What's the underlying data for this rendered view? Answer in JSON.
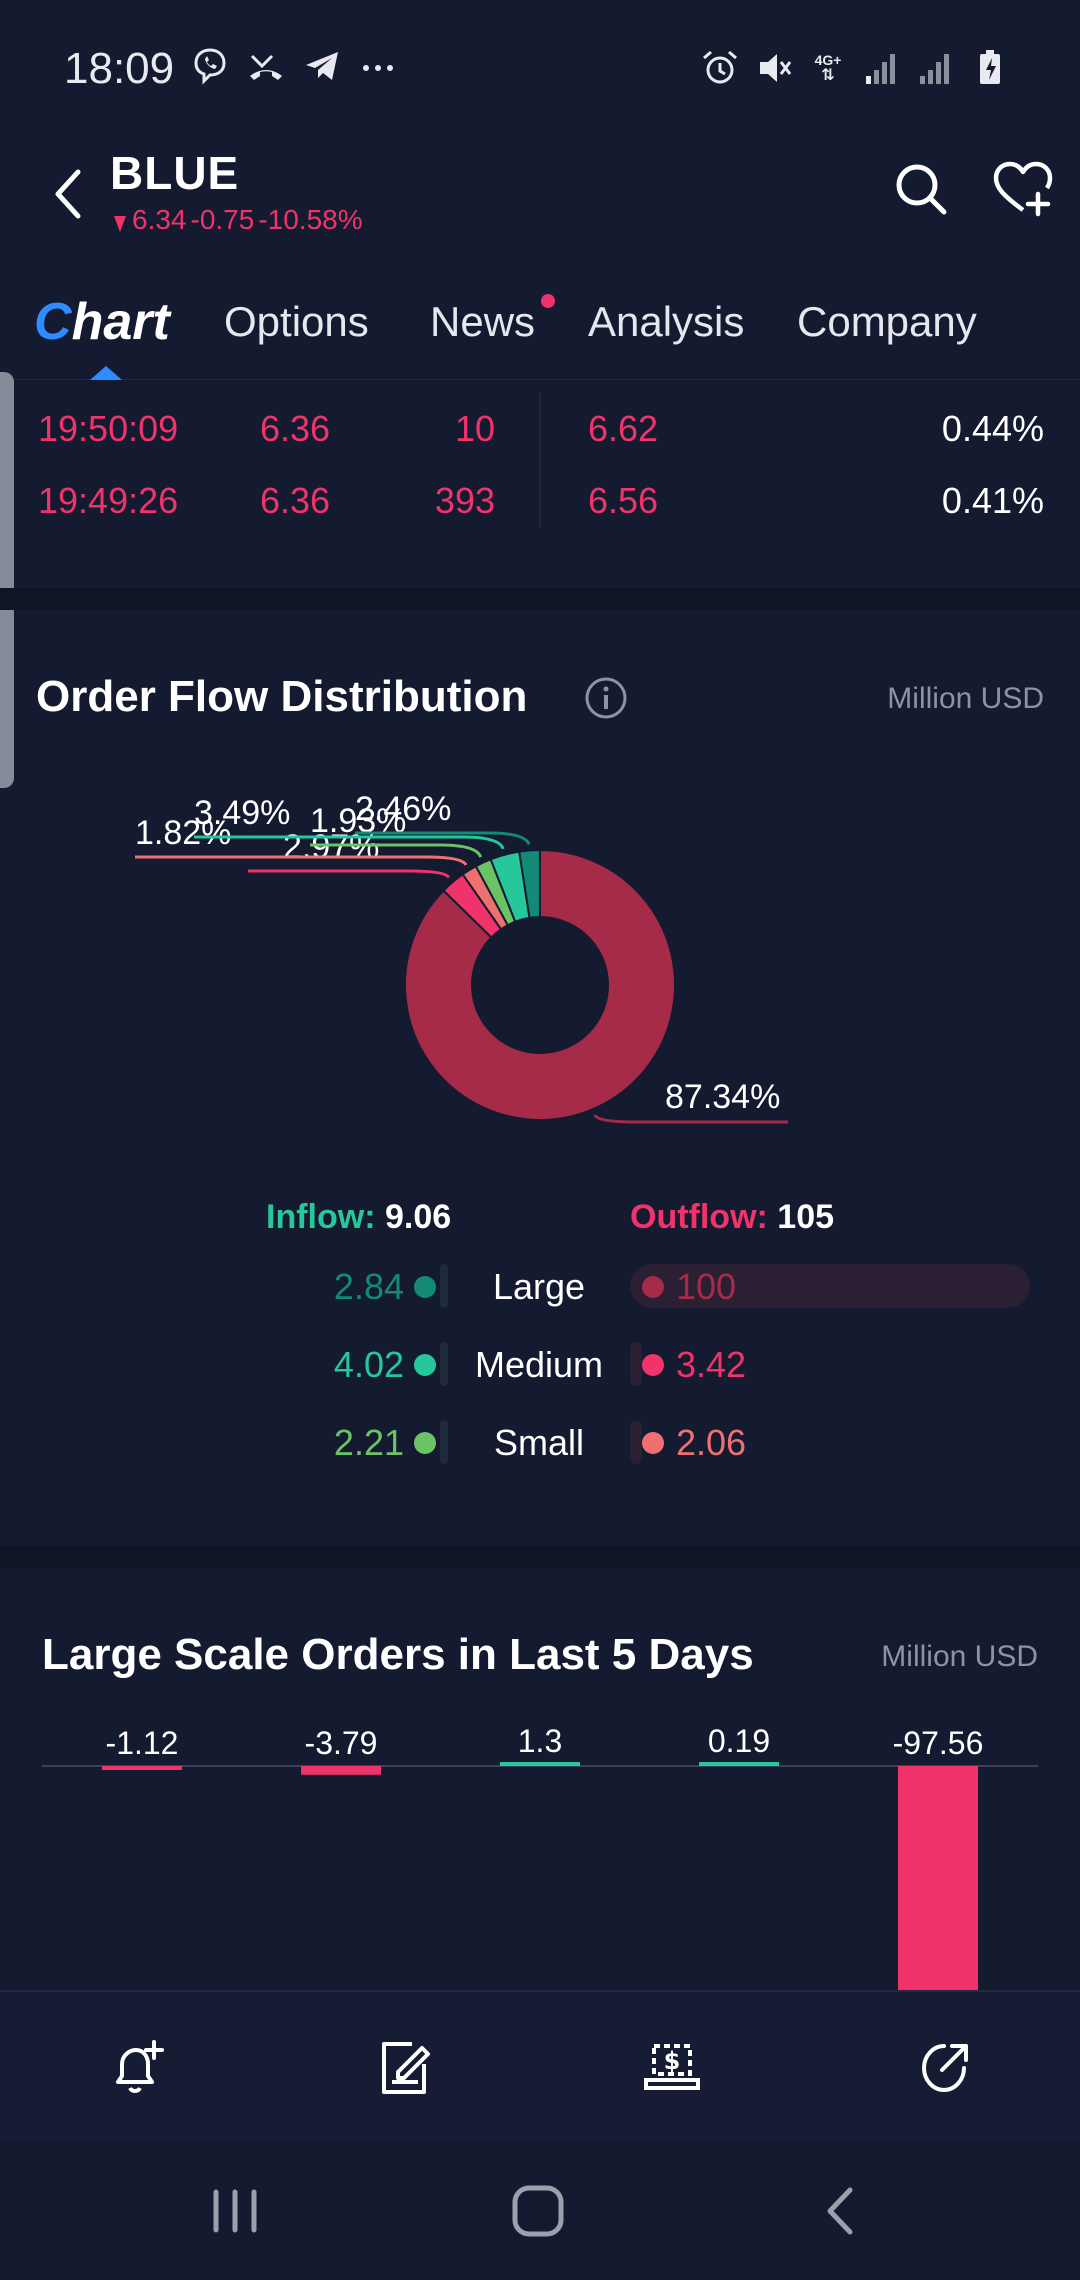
{
  "status_bar": {
    "time": "18:09",
    "left_icons": [
      "viber-icon",
      "missed-call-icon",
      "telegram-icon",
      "more-dots-icon"
    ],
    "right_icons": [
      "alarm-icon",
      "mute-icon",
      "4g-icon",
      "signal-icon",
      "signal-icon-2",
      "battery-charging-icon"
    ],
    "network_label": "4G+"
  },
  "header": {
    "ticker": "BLUE",
    "price": "6.34",
    "change": "-0.75",
    "change_pct": "-10.58%",
    "accent_down": "#f0336a"
  },
  "tabs": {
    "chart": "Chart",
    "chart_first": "C",
    "chart_rest": "hart",
    "options": "Options",
    "news": "News",
    "analysis": "Analysis",
    "company": "Company",
    "active": "chart",
    "accent": "#2f8cff"
  },
  "trades": [
    {
      "time": "19:50:09",
      "price": "6.36",
      "volume": "10",
      "price2": "6.62",
      "pct": "0.44%"
    },
    {
      "time": "19:49:26",
      "price": "6.36",
      "volume": "393",
      "price2": "6.56",
      "pct": "0.41%"
    }
  ],
  "order_flow": {
    "title": "Order Flow Distribution",
    "unit": "Million USD",
    "inflow_label": "Inflow:",
    "inflow_total": "9.06",
    "outflow_label": "Outflow:",
    "outflow_total": "105",
    "rows": [
      {
        "label": "Large",
        "inflow": "2.84",
        "outflow": "100",
        "in_color": "#128a76",
        "out_color": "#a62b48"
      },
      {
        "label": "Medium",
        "inflow": "4.02",
        "outflow": "3.42",
        "in_color": "#26c79b",
        "out_color": "#f0336a"
      },
      {
        "label": "Small",
        "inflow": "2.21",
        "outflow": "2.06",
        "in_color": "#6cc365",
        "out_color": "#f07070"
      }
    ]
  },
  "chart_data": [
    {
      "type": "pie",
      "title": "Order Flow Distribution",
      "unit": "Million USD",
      "slices": [
        {
          "label": "87.34%",
          "value": 87.34,
          "color": "#a62b48"
        },
        {
          "label": "2.97%",
          "value": 2.97,
          "color": "#f0336a"
        },
        {
          "label": "1.82%",
          "value": 1.82,
          "color": "#f07070"
        },
        {
          "label": "1.93%",
          "value": 1.93,
          "color": "#6cc365"
        },
        {
          "label": "3.49%",
          "value": 3.49,
          "color": "#26c79b"
        },
        {
          "label": "2.46%",
          "value": 2.46,
          "color": "#128a76"
        }
      ]
    },
    {
      "type": "bar",
      "title": "Large Scale Orders in Last 5 Days",
      "unit": "Million USD",
      "categories": [
        "",
        "",
        "",
        "",
        ""
      ],
      "values": [
        -1.12,
        -3.79,
        1.3,
        0.19,
        -97.56
      ],
      "labels": [
        "-1.12",
        "-3.79",
        "1.3",
        "0.19",
        "-97.56"
      ],
      "positive_color": "#26c79b",
      "negative_color": "#f0336a",
      "ylim": [
        -97.56,
        1.3
      ]
    }
  ],
  "toolbar": {
    "icons": [
      "alert-add-icon",
      "edit-note-icon",
      "trade-icon",
      "share-icon"
    ]
  },
  "navbar": {
    "icons": [
      "recents-icon",
      "home-icon",
      "back-nav-icon"
    ]
  }
}
